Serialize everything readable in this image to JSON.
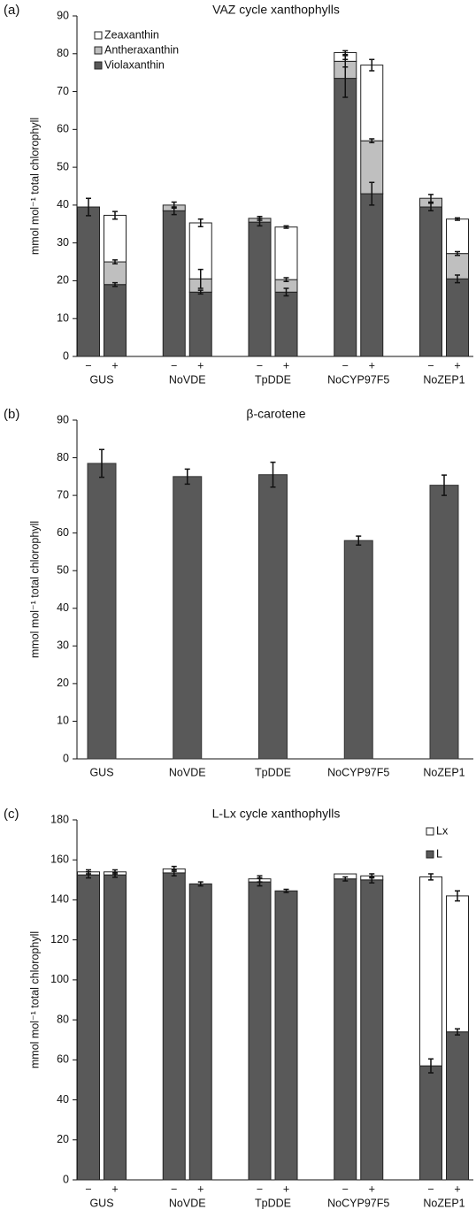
{
  "chart_data": [
    {
      "type": "stacked_bar",
      "panel": "(a)",
      "title": "VAZ cycle xanthophylls",
      "ylabel": "mmol mol⁻¹ total chlorophyll",
      "groups": [
        "GUS",
        "NoVDE",
        "TpDDE",
        "NoCYP97F5",
        "NoZEP1"
      ],
      "categories": [
        "−",
        "+",
        "−",
        "+",
        "−",
        "+",
        "−",
        "+",
        "−",
        "+"
      ],
      "series": [
        {
          "name": "Violaxanthin",
          "color": "#595959",
          "values": [
            39.5,
            19,
            38.5,
            17,
            35.5,
            17,
            73.5,
            43,
            39.5,
            20.5
          ],
          "errors": [
            2.3,
            0.5,
            1,
            0.5,
            1,
            1,
            5,
            3,
            1,
            1
          ]
        },
        {
          "name": "Antheraxanthin",
          "color": "#bfbfbf",
          "values": [
            0,
            6,
            1.5,
            3.5,
            1,
            3.3,
            4.5,
            14,
            2.3,
            6.7
          ],
          "errors": [
            null,
            0.5,
            0.8,
            2.5,
            0.5,
            0.5,
            1.5,
            0.5,
            1,
            0.5
          ]
        },
        {
          "name": "Zeaxanthin",
          "color": "#ffffff",
          "values": [
            0,
            12.3,
            0,
            14.8,
            0,
            13.9,
            2.3,
            20,
            0,
            9.1
          ],
          "errors": [
            null,
            1,
            null,
            1,
            null,
            0.3,
            0.5,
            1.5,
            null,
            0.3
          ]
        }
      ],
      "ylim": [
        0,
        90
      ],
      "yticks": [
        0,
        10,
        20,
        30,
        40,
        50,
        60,
        70,
        80,
        90
      ],
      "legend": "upper left"
    },
    {
      "type": "bar",
      "panel": "(b)",
      "title": "β-carotene",
      "ylabel": "mmol mol⁻¹ total chlorophyll",
      "categories": [
        "GUS",
        "NoVDE",
        "TpDDE",
        "NoCYP97F5",
        "NoZEP1"
      ],
      "values": [
        78.5,
        75,
        75.5,
        58,
        72.7
      ],
      "errors": [
        3.7,
        2,
        3.3,
        1.2,
        2.7
      ],
      "color": "#595959",
      "ylim": [
        0,
        90
      ],
      "yticks": [
        0,
        10,
        20,
        30,
        40,
        50,
        60,
        70,
        80,
        90
      ]
    },
    {
      "type": "stacked_bar",
      "panel": "(c)",
      "title": "L-Lx cycle xanthophylls",
      "ylabel": "mmol mol⁻¹ total chlorophyll",
      "groups": [
        "GUS",
        "NoVDE",
        "TpDDE",
        "NoCYP97F5",
        "NoZEP1"
      ],
      "categories": [
        "−",
        "+",
        "−",
        "+",
        "−",
        "+",
        "−",
        "+",
        "−",
        "+"
      ],
      "series": [
        {
          "name": "L",
          "color": "#595959",
          "values": [
            152.5,
            152.5,
            153.5,
            148,
            149,
            144.5,
            150.5,
            150,
            57,
            74
          ],
          "errors": [
            1.5,
            1.2,
            1.5,
            1,
            2,
            0.8,
            1,
            1.5,
            3.5,
            1.5
          ]
        },
        {
          "name": "Lx",
          "color": "#ffffff",
          "values": [
            1.5,
            1.5,
            2,
            0,
            1.5,
            0,
            2.5,
            2,
            94.5,
            68
          ],
          "errors": [
            1,
            1,
            1.2,
            null,
            1.5,
            null,
            null,
            1,
            1.5,
            2.5
          ]
        }
      ],
      "ylim": [
        0,
        180
      ],
      "yticks": [
        0,
        20,
        40,
        60,
        80,
        100,
        120,
        140,
        160,
        180
      ],
      "legend": "upper right"
    }
  ]
}
